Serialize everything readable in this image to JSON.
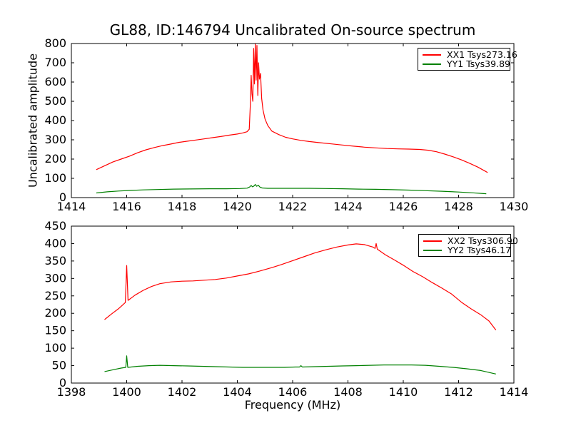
{
  "figure": {
    "title": "GL88, ID:146794 Uncalibrated On-source spectrum",
    "ylabel": "Uncalibrated amplitude",
    "xlabel": "Frequency (MHz)"
  },
  "colors": {
    "xx_line": "#ff0000",
    "yy_line": "#008000",
    "axes": "#000000",
    "background": "#ffffff"
  },
  "chart_data": [
    {
      "type": "line",
      "subplot": "top",
      "xlim": [
        1414,
        1430
      ],
      "ylim": [
        0,
        800
      ],
      "x_ticks": [
        1414,
        1416,
        1418,
        1420,
        1422,
        1424,
        1426,
        1428,
        1430
      ],
      "y_ticks": [
        0,
        100,
        200,
        300,
        400,
        500,
        600,
        700,
        800
      ],
      "grid": false,
      "legend_position": "upper right",
      "series": [
        {
          "name": "XX1 Tsys273.16",
          "color": "#ff0000",
          "points": [
            [
              1414.9,
              145
            ],
            [
              1415.2,
              165
            ],
            [
              1415.5,
              185
            ],
            [
              1415.8,
              200
            ],
            [
              1416.1,
              215
            ],
            [
              1416.4,
              233
            ],
            [
              1416.7,
              248
            ],
            [
              1417.0,
              260
            ],
            [
              1417.3,
              270
            ],
            [
              1417.6,
              278
            ],
            [
              1417.9,
              287
            ],
            [
              1418.2,
              293
            ],
            [
              1418.5,
              299
            ],
            [
              1418.8,
              305
            ],
            [
              1419.1,
              311
            ],
            [
              1419.4,
              317
            ],
            [
              1419.7,
              324
            ],
            [
              1420.0,
              330
            ],
            [
              1420.2,
              336
            ],
            [
              1420.35,
              342
            ],
            [
              1420.43,
              355
            ],
            [
              1420.47,
              480
            ],
            [
              1420.5,
              635
            ],
            [
              1420.53,
              540
            ],
            [
              1420.56,
              500
            ],
            [
              1420.59,
              775
            ],
            [
              1420.62,
              590
            ],
            [
              1420.65,
              798
            ],
            [
              1420.68,
              610
            ],
            [
              1420.71,
              790
            ],
            [
              1420.74,
              530
            ],
            [
              1420.77,
              700
            ],
            [
              1420.8,
              615
            ],
            [
              1420.84,
              645
            ],
            [
              1420.88,
              515
            ],
            [
              1420.93,
              455
            ],
            [
              1421.0,
              408
            ],
            [
              1421.1,
              375
            ],
            [
              1421.25,
              345
            ],
            [
              1421.5,
              327
            ],
            [
              1421.75,
              313
            ],
            [
              1422.0,
              305
            ],
            [
              1422.3,
              297
            ],
            [
              1422.6,
              291
            ],
            [
              1423.0,
              285
            ],
            [
              1423.4,
              279
            ],
            [
              1423.8,
              273
            ],
            [
              1424.2,
              267
            ],
            [
              1424.6,
              262
            ],
            [
              1425.0,
              258
            ],
            [
              1425.4,
              255
            ],
            [
              1425.8,
              253
            ],
            [
              1426.2,
              252
            ],
            [
              1426.6,
              250
            ],
            [
              1426.9,
              246
            ],
            [
              1427.2,
              238
            ],
            [
              1427.5,
              226
            ],
            [
              1427.8,
              212
            ],
            [
              1428.1,
              196
            ],
            [
              1428.4,
              178
            ],
            [
              1428.7,
              158
            ],
            [
              1428.95,
              138
            ],
            [
              1429.05,
              130
            ]
          ]
        },
        {
          "name": "YY1 Tsys39.89",
          "color": "#008000",
          "points": [
            [
              1414.9,
              24
            ],
            [
              1415.3,
              30
            ],
            [
              1415.7,
              34
            ],
            [
              1416.1,
              37
            ],
            [
              1416.6,
              40
            ],
            [
              1417.1,
              42
            ],
            [
              1417.7,
              44
            ],
            [
              1418.3,
              45
            ],
            [
              1419.0,
              46
            ],
            [
              1419.6,
              46
            ],
            [
              1420.1,
              47
            ],
            [
              1420.35,
              49
            ],
            [
              1420.45,
              55
            ],
            [
              1420.5,
              63
            ],
            [
              1420.55,
              56
            ],
            [
              1420.6,
              60
            ],
            [
              1420.65,
              68
            ],
            [
              1420.7,
              59
            ],
            [
              1420.76,
              64
            ],
            [
              1420.82,
              54
            ],
            [
              1420.9,
              50
            ],
            [
              1421.1,
              48
            ],
            [
              1421.5,
              48
            ],
            [
              1422.0,
              48
            ],
            [
              1422.6,
              48
            ],
            [
              1423.2,
              47
            ],
            [
              1423.8,
              46
            ],
            [
              1424.4,
              44
            ],
            [
              1425.0,
              43
            ],
            [
              1425.6,
              41
            ],
            [
              1426.2,
              39
            ],
            [
              1426.8,
              36
            ],
            [
              1427.4,
              33
            ],
            [
              1428.0,
              29
            ],
            [
              1428.5,
              25
            ],
            [
              1429.0,
              20
            ]
          ]
        }
      ]
    },
    {
      "type": "line",
      "subplot": "bottom",
      "xlim": [
        1398,
        1414
      ],
      "ylim": [
        0,
        450
      ],
      "x_ticks": [
        1398,
        1400,
        1402,
        1404,
        1406,
        1408,
        1410,
        1412,
        1414
      ],
      "y_ticks": [
        0,
        50,
        100,
        150,
        200,
        250,
        300,
        350,
        400,
        450
      ],
      "grid": false,
      "legend_position": "upper right",
      "series": [
        {
          "name": "XX2 Tsys306.90",
          "color": "#ff0000",
          "points": [
            [
              1399.2,
              182
            ],
            [
              1399.45,
              198
            ],
            [
              1399.7,
              213
            ],
            [
              1399.95,
              231
            ],
            [
              1400.0,
              337
            ],
            [
              1400.05,
              237
            ],
            [
              1400.3,
              252
            ],
            [
              1400.6,
              266
            ],
            [
              1400.9,
              277
            ],
            [
              1401.2,
              285
            ],
            [
              1401.6,
              290
            ],
            [
              1402.0,
              292
            ],
            [
              1402.4,
              293
            ],
            [
              1402.8,
              295
            ],
            [
              1403.2,
              297
            ],
            [
              1403.6,
              301
            ],
            [
              1404.0,
              307
            ],
            [
              1404.4,
              313
            ],
            [
              1404.8,
              321
            ],
            [
              1405.2,
              330
            ],
            [
              1405.6,
              340
            ],
            [
              1406.0,
              351
            ],
            [
              1406.4,
              362
            ],
            [
              1406.8,
              373
            ],
            [
              1407.2,
              382
            ],
            [
              1407.6,
              390
            ],
            [
              1408.0,
              396
            ],
            [
              1408.3,
              399
            ],
            [
              1408.6,
              397
            ],
            [
              1408.9,
              390
            ],
            [
              1408.98,
              386
            ],
            [
              1409.02,
              400
            ],
            [
              1409.06,
              384
            ],
            [
              1409.35,
              368
            ],
            [
              1409.7,
              352
            ],
            [
              1410.0,
              338
            ],
            [
              1410.35,
              320
            ],
            [
              1410.7,
              305
            ],
            [
              1411.05,
              288
            ],
            [
              1411.4,
              272
            ],
            [
              1411.75,
              255
            ],
            [
              1412.1,
              232
            ],
            [
              1412.45,
              213
            ],
            [
              1412.8,
              196
            ],
            [
              1413.1,
              178
            ],
            [
              1413.35,
              152
            ]
          ]
        },
        {
          "name": "YY2 Tsys46.17",
          "color": "#008000",
          "points": [
            [
              1399.2,
              33
            ],
            [
              1399.5,
              38
            ],
            [
              1399.8,
              43
            ],
            [
              1399.97,
              45
            ],
            [
              1400.0,
              78
            ],
            [
              1400.04,
              45
            ],
            [
              1400.4,
              48
            ],
            [
              1400.8,
              50
            ],
            [
              1401.2,
              51
            ],
            [
              1401.7,
              50
            ],
            [
              1402.2,
              49
            ],
            [
              1402.7,
              48
            ],
            [
              1403.2,
              47
            ],
            [
              1403.7,
              46
            ],
            [
              1404.2,
              45
            ],
            [
              1404.7,
              45
            ],
            [
              1405.2,
              45
            ],
            [
              1405.7,
              45
            ],
            [
              1406.1,
              46
            ],
            [
              1406.25,
              46
            ],
            [
              1406.3,
              50
            ],
            [
              1406.35,
              46
            ],
            [
              1406.8,
              47
            ],
            [
              1407.3,
              48
            ],
            [
              1407.8,
              49
            ],
            [
              1408.3,
              50
            ],
            [
              1408.8,
              51
            ],
            [
              1409.3,
              52
            ],
            [
              1409.8,
              52
            ],
            [
              1410.3,
              52
            ],
            [
              1410.8,
              51
            ],
            [
              1411.3,
              48
            ],
            [
              1411.8,
              45
            ],
            [
              1412.3,
              41
            ],
            [
              1412.8,
              36
            ],
            [
              1413.35,
              26
            ]
          ]
        }
      ]
    }
  ]
}
